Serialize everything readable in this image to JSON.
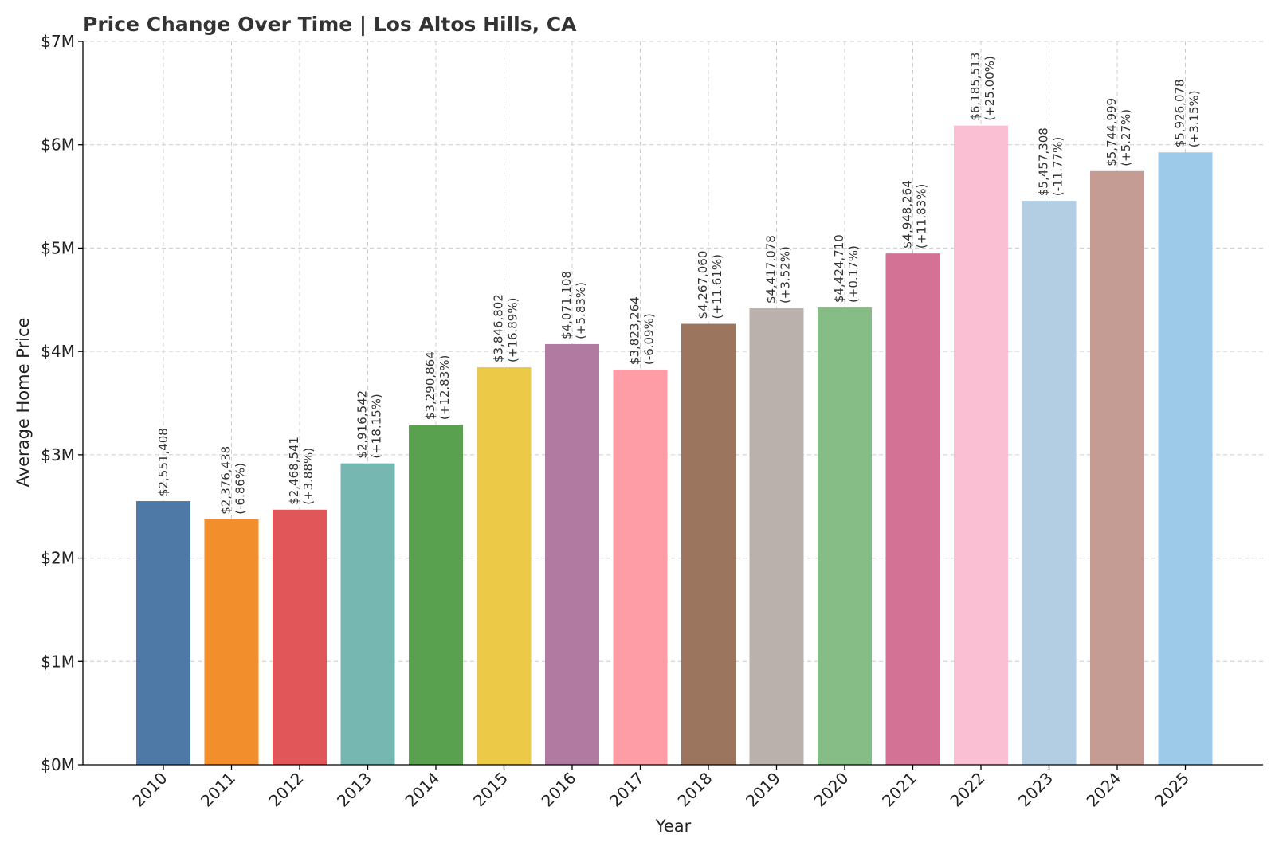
{
  "chart_data": {
    "type": "bar",
    "title": "Price Change Over Time | Los Altos Hills, CA",
    "xlabel": "Year",
    "ylabel": "Average Home Price",
    "ylim": [
      0,
      7000000
    ],
    "yticks": [
      0,
      1000000,
      2000000,
      3000000,
      4000000,
      5000000,
      6000000,
      7000000
    ],
    "ytick_labels": [
      "$0M",
      "$1M",
      "$2M",
      "$3M",
      "$4M",
      "$5M",
      "$6M",
      "$7M"
    ],
    "grid": true,
    "categories": [
      "2010",
      "2011",
      "2012",
      "2013",
      "2014",
      "2015",
      "2016",
      "2017",
      "2018",
      "2019",
      "2020",
      "2021",
      "2022",
      "2023",
      "2024",
      "2025"
    ],
    "values": [
      2551408,
      2376438,
      2468541,
      2916542,
      3290864,
      3846802,
      4071108,
      3823264,
      4267060,
      4417078,
      4424710,
      4948264,
      6185513,
      5457308,
      5744999,
      5926078
    ],
    "value_labels": [
      "$2,551,408",
      "$2,376,438",
      "$2,468,541",
      "$2,916,542",
      "$3,290,864",
      "$3,846,802",
      "$4,071,108",
      "$3,823,264",
      "$4,267,060",
      "$4,417,078",
      "$4,424,710",
      "$4,948,264",
      "$6,185,513",
      "$5,457,308",
      "$5,744,999",
      "$5,926,078"
    ],
    "change_labels": [
      "",
      "(-6.86%)",
      "(+3.88%)",
      "(+18.15%)",
      "(+12.83%)",
      "(+16.89%)",
      "(+5.83%)",
      "(-6.09%)",
      "(+11.61%)",
      "(+3.52%)",
      "(+0.17%)",
      "(+11.83%)",
      "(+25.00%)",
      "(-11.77%)",
      "(+5.27%)",
      "(+3.15%)"
    ],
    "colors": [
      "#4e79a7",
      "#f28e2b",
      "#e15759",
      "#76b7b2",
      "#59a14f",
      "#edc948",
      "#b07aa1",
      "#ff9da7",
      "#9c755f",
      "#bab0ac",
      "#86bc86",
      "#d37295",
      "#fabfd2",
      "#b3cde3",
      "#c49c94",
      "#9ecae9"
    ]
  }
}
